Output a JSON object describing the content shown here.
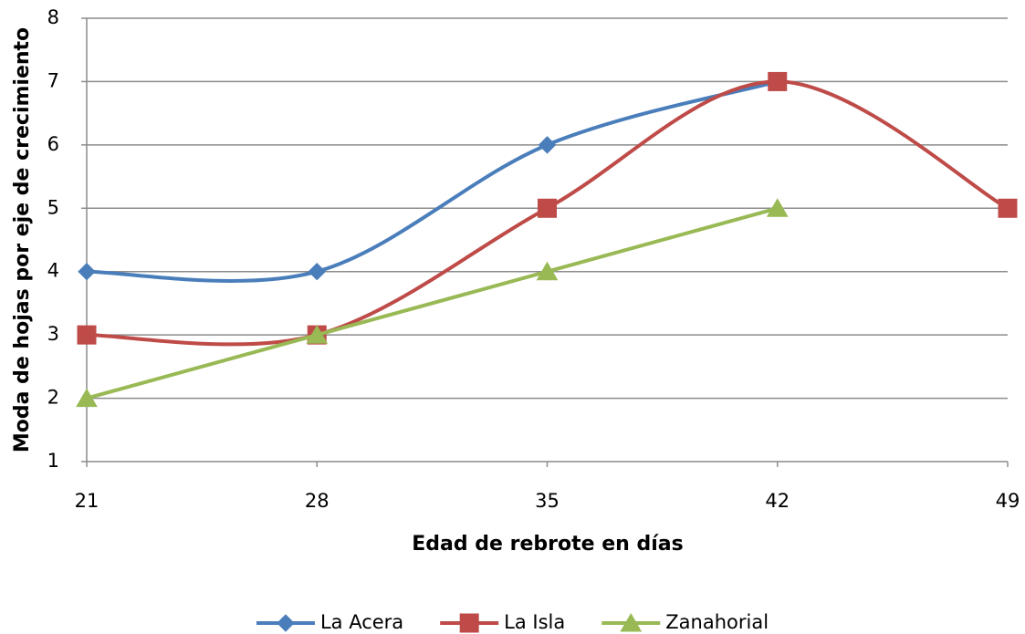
{
  "chart_data": {
    "type": "line",
    "x_label": "Edad de rebrote en días",
    "y_label": "Moda de hojas por eje de crecimiento",
    "x": [
      21,
      28,
      35,
      42,
      49
    ],
    "xlim": [
      21,
      49
    ],
    "xticks": [
      21,
      28,
      35,
      42,
      49
    ],
    "ylim": [
      1,
      8
    ],
    "yticks": [
      1,
      2,
      3,
      4,
      5,
      6,
      7,
      8
    ],
    "grid": true,
    "legend": "bottom",
    "series": [
      {
        "name": "La Acera",
        "color": "#4a7ebb",
        "marker": "diamond",
        "smooth": true,
        "values": [
          4,
          4,
          6,
          7,
          null
        ]
      },
      {
        "name": "La Isla",
        "color": "#be4b48",
        "marker": "square",
        "smooth": true,
        "values": [
          3,
          3,
          5,
          7,
          5
        ]
      },
      {
        "name": "Zanahorial",
        "color": "#98b954",
        "marker": "triangle",
        "smooth": false,
        "values": [
          2,
          3,
          4,
          5,
          null
        ]
      }
    ]
  }
}
